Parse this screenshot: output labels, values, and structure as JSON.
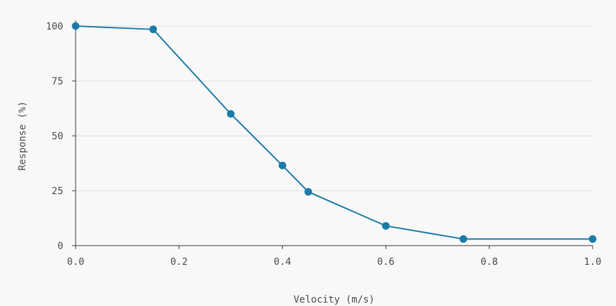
{
  "chart_data": {
    "type": "line",
    "title": "",
    "xlabel": "Velocity (m/s)",
    "ylabel": "Response (%)",
    "xlim": [
      0.0,
      1.0
    ],
    "ylim": [
      0,
      100
    ],
    "x_ticks": [
      {
        "value": 0.0,
        "label": "0.0"
      },
      {
        "value": 0.2,
        "label": "0.2"
      },
      {
        "value": 0.4,
        "label": "0.4"
      },
      {
        "value": 0.6,
        "label": "0.6"
      },
      {
        "value": 0.8,
        "label": "0.8"
      },
      {
        "value": 1.0,
        "label": "1.0"
      }
    ],
    "y_ticks": [
      {
        "value": 0,
        "label": "0"
      },
      {
        "value": 25,
        "label": "25"
      },
      {
        "value": 50,
        "label": "50"
      },
      {
        "value": 75,
        "label": "75"
      },
      {
        "value": 100,
        "label": "100"
      }
    ],
    "grid": "horizontal",
    "legend": "none",
    "colors": {
      "series": "#1a7aa8",
      "grid": "#dddddd",
      "axis": "#333333",
      "text": "#4a4a4a",
      "background": "#f8f8f8"
    },
    "series": [
      {
        "x": [
          0.0,
          0.15,
          0.3,
          0.4,
          0.45,
          0.6,
          0.75,
          1.0
        ],
        "y": [
          100,
          98.5,
          60,
          36.5,
          24.5,
          9,
          3,
          3
        ]
      }
    ]
  }
}
